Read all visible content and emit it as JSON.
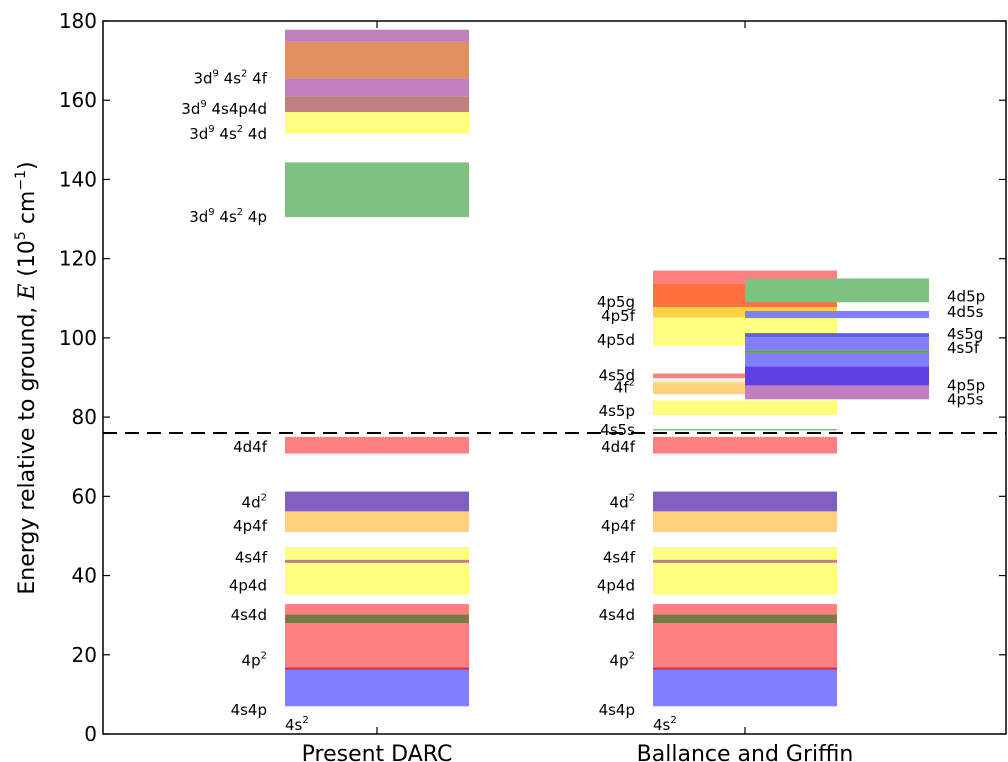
{
  "chart_data": {
    "type": "bar",
    "title": "",
    "ylabel": "Energy relative to ground, E (10⁵ cm⁻¹)",
    "ylabel_parts": {
      "main": "Energy relative to ground, ",
      "var": "E",
      "unit_open": " (10",
      "exp1": "5",
      "unit_mid": " cm",
      "exp2": "−1",
      "unit_close": ")"
    },
    "ylim": [
      0,
      180
    ],
    "yticks": [
      0,
      20,
      40,
      60,
      80,
      100,
      120,
      140,
      160,
      180
    ],
    "categories": [
      "Present DARC",
      "Ballance and Griffin"
    ],
    "threshold": 76,
    "grid": false,
    "columns": [
      {
        "name": "present",
        "bands": [
          {
            "y0": 7.0,
            "y1": 16.2,
            "color": "#8080ff",
            "opacity": 1
          },
          {
            "y0": 16.2,
            "y1": 16.8,
            "color": "#c83050",
            "opacity": 1
          },
          {
            "y0": 16.8,
            "y1": 28.0,
            "color": "#ff8080",
            "opacity": 1
          },
          {
            "y0": 28.0,
            "y1": 30.2,
            "color": "#7a7a40",
            "opacity": 1
          },
          {
            "y0": 30.2,
            "y1": 32.8,
            "color": "#ff8080",
            "opacity": 1
          },
          {
            "y0": 35.2,
            "y1": 43.2,
            "color": "#ffff80",
            "opacity": 1
          },
          {
            "y0": 43.2,
            "y1": 44.0,
            "color": "#c08080",
            "opacity": 1
          },
          {
            "y0": 44.0,
            "y1": 47.2,
            "color": "#ffff80",
            "opacity": 1
          },
          {
            "y0": 51.0,
            "y1": 56.2,
            "color": "#ffd080",
            "opacity": 1
          },
          {
            "y0": 56.2,
            "y1": 61.2,
            "color": "#8060c0",
            "opacity": 1
          },
          {
            "y0": 70.8,
            "y1": 75.0,
            "color": "#ff8080",
            "opacity": 1
          },
          {
            "y0": 130.5,
            "y1": 144.3,
            "color": "#80c080",
            "opacity": 1
          },
          {
            "y0": 151.5,
            "y1": 157.0,
            "color": "#ffff80",
            "opacity": 1
          },
          {
            "y0": 157.0,
            "y1": 161.0,
            "color": "#c08080",
            "opacity": 1
          },
          {
            "y0": 161.0,
            "y1": 165.5,
            "color": "#c080c0",
            "opacity": 1
          },
          {
            "y0": 165.5,
            "y1": 174.8,
            "color": "#e09060",
            "opacity": 1
          },
          {
            "y0": 174.8,
            "y1": 177.8,
            "color": "#c080c0",
            "opacity": 1
          }
        ],
        "labels": [
          {
            "y": 6.0,
            "base": "4s4p",
            "sup": ""
          },
          {
            "y": 18.5,
            "base": "4p",
            "sup": "2"
          },
          {
            "y": 30.0,
            "base": "4s4d",
            "sup": ""
          },
          {
            "y": 37.5,
            "base": "4p4d",
            "sup": ""
          },
          {
            "y": 44.5,
            "base": "4s4f",
            "sup": ""
          },
          {
            "y": 52.5,
            "base": "4p4f",
            "sup": ""
          },
          {
            "y": 58.5,
            "base": "4d",
            "sup": "2"
          },
          {
            "y": 72.5,
            "base": "4d4f",
            "sup": ""
          },
          {
            "y": 130.5,
            "base": "3d",
            "sup": "9",
            "rest": " 4s",
            "sup2": "2",
            "tail": " 4p"
          },
          {
            "y": 151.5,
            "base": "3d",
            "sup": "9",
            "rest": " 4s",
            "sup2": "2",
            "tail": " 4d"
          },
          {
            "y": 157.8,
            "base": "3d",
            "sup": "9",
            "rest": " 4s4p4d",
            "sup2": "",
            "tail": ""
          },
          {
            "y": 165.5,
            "base": "3d",
            "sup": "9",
            "rest": " 4s",
            "sup2": "2",
            "tail": " 4f"
          }
        ],
        "ground_label": {
          "y": 2.3,
          "base": "4s",
          "sup": "2"
        }
      },
      {
        "name": "ballance-left",
        "bands": [
          {
            "y0": 7.0,
            "y1": 16.2,
            "color": "#8080ff",
            "opacity": 1
          },
          {
            "y0": 16.2,
            "y1": 16.8,
            "color": "#c83050",
            "opacity": 1
          },
          {
            "y0": 16.8,
            "y1": 28.0,
            "color": "#ff8080",
            "opacity": 1
          },
          {
            "y0": 28.0,
            "y1": 30.2,
            "color": "#7a7a40",
            "opacity": 1
          },
          {
            "y0": 30.2,
            "y1": 32.8,
            "color": "#ff8080",
            "opacity": 1
          },
          {
            "y0": 35.2,
            "y1": 43.2,
            "color": "#ffff80",
            "opacity": 1
          },
          {
            "y0": 43.2,
            "y1": 44.0,
            "color": "#c08080",
            "opacity": 1
          },
          {
            "y0": 44.0,
            "y1": 47.2,
            "color": "#ffff80",
            "opacity": 1
          },
          {
            "y0": 51.0,
            "y1": 56.2,
            "color": "#ffd080",
            "opacity": 1
          },
          {
            "y0": 56.2,
            "y1": 61.2,
            "color": "#8060c0",
            "opacity": 1
          },
          {
            "y0": 70.8,
            "y1": 75.0,
            "color": "#ff8080",
            "opacity": 1
          },
          {
            "y0": 80.5,
            "y1": 84.2,
            "color": "#ffff80",
            "opacity": 1
          },
          {
            "y0": 85.8,
            "y1": 88.5,
            "color": "#ffd080",
            "opacity": 1
          },
          {
            "y0": 88.5,
            "y1": 89.2,
            "color": "#ffe0a0",
            "opacity": 1
          },
          {
            "y0": 89.8,
            "y1": 91.0,
            "color": "#ff8080",
            "opacity": 1
          },
          {
            "y0": 98.0,
            "y1": 105.2,
            "color": "#ffff80",
            "opacity": 1
          },
          {
            "y0": 105.2,
            "y1": 107.8,
            "color": "#ffd040",
            "opacity": 1
          },
          {
            "y0": 107.8,
            "y1": 113.8,
            "color": "#ff7040",
            "opacity": 1
          },
          {
            "y0": 113.8,
            "y1": 117.0,
            "color": "#ff8080",
            "opacity": 1
          }
        ],
        "lines": [
          {
            "y": 76.8,
            "x0frac": 0.0,
            "x1frac": 1.0,
            "color": "#80c080"
          }
        ],
        "labels": [
          {
            "y": 6.0,
            "base": "4s4p",
            "sup": ""
          },
          {
            "y": 18.5,
            "base": "4p",
            "sup": "2"
          },
          {
            "y": 30.0,
            "base": "4s4d",
            "sup": ""
          },
          {
            "y": 37.5,
            "base": "4p4d",
            "sup": ""
          },
          {
            "y": 44.5,
            "base": "4s4f",
            "sup": ""
          },
          {
            "y": 52.5,
            "base": "4p4f",
            "sup": ""
          },
          {
            "y": 58.5,
            "base": "4d",
            "sup": "2"
          },
          {
            "y": 72.5,
            "base": "4d4f",
            "sup": ""
          },
          {
            "y": 76.8,
            "base": "4s5s",
            "sup": ""
          },
          {
            "y": 81.5,
            "base": "4s5p",
            "sup": ""
          },
          {
            "y": 87.5,
            "base": "4f",
            "sup": "2"
          },
          {
            "y": 90.5,
            "base": "4s5d",
            "sup": ""
          },
          {
            "y": 99.5,
            "base": "4p5d",
            "sup": ""
          },
          {
            "y": 105.5,
            "base": "4p5f",
            "sup": ""
          },
          {
            "y": 109.0,
            "base": "4p5g",
            "sup": ""
          }
        ],
        "ground_label": {
          "y": 2.3,
          "base": "4s",
          "sup": "2"
        }
      },
      {
        "name": "ballance-right",
        "bands": [
          {
            "y0": 84.5,
            "y1": 88.0,
            "color": "#c080c0",
            "opacity": 1
          },
          {
            "y0": 88.0,
            "y1": 92.8,
            "color": "#6040e0",
            "opacity": 1
          },
          {
            "y0": 92.8,
            "y1": 96.2,
            "color": "#8080ff",
            "opacity": 1
          },
          {
            "y0": 96.2,
            "y1": 96.9,
            "color": "#60a070",
            "opacity": 1
          },
          {
            "y0": 96.9,
            "y1": 100.2,
            "color": "#8080ff",
            "opacity": 1
          },
          {
            "y0": 100.2,
            "y1": 101.2,
            "color": "#6060e0",
            "opacity": 1
          },
          {
            "y0": 105.0,
            "y1": 106.8,
            "color": "#8080ff",
            "opacity": 1
          },
          {
            "y0": 109.0,
            "y1": 115.0,
            "color": "#80c080",
            "opacity": 1
          }
        ],
        "labels": [
          {
            "y": 84.5,
            "base": "4p5s",
            "sup": ""
          },
          {
            "y": 88.0,
            "base": "4p5p",
            "sup": ""
          },
          {
            "y": 97.5,
            "base": "4s5f",
            "sup": ""
          },
          {
            "y": 101.0,
            "base": "4s5g",
            "sup": ""
          },
          {
            "y": 106.5,
            "base": "4d5s",
            "sup": ""
          },
          {
            "y": 110.5,
            "base": "4d5p",
            "sup": ""
          }
        ]
      }
    ]
  }
}
